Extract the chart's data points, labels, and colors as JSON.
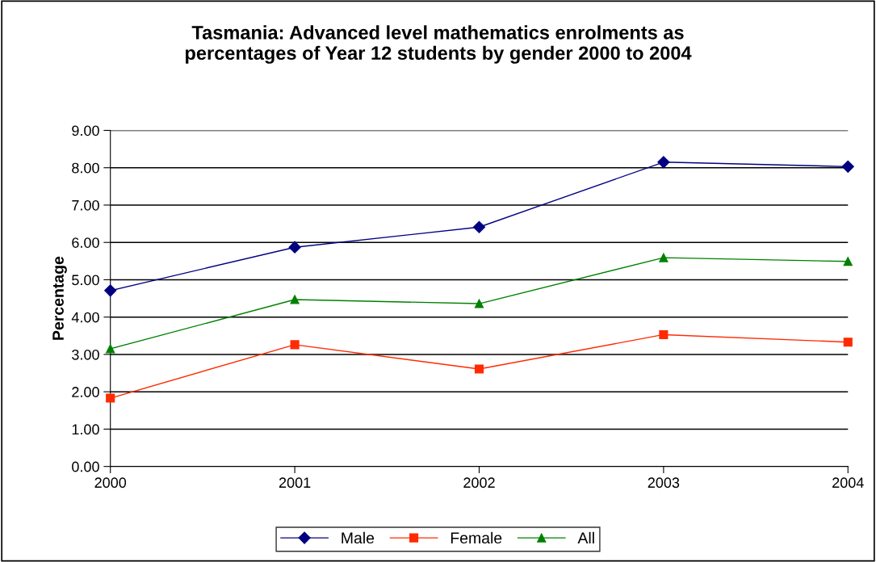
{
  "chart_data": {
    "type": "line",
    "title": "Tasmania: Advanced level mathematics enrolments as\npercentages of Year 12 students by gender 2000 to 2004",
    "ylabel": "Percentage",
    "x": [
      2000,
      2001,
      2002,
      2003,
      2004
    ],
    "xlim": [
      2000,
      2004
    ],
    "xticks": [
      2000,
      2001,
      2002,
      2003,
      2004
    ],
    "ylim": [
      0,
      9
    ],
    "yticks": [
      {
        "value": 0,
        "label": "0.00"
      },
      {
        "value": 1,
        "label": "1.00"
      },
      {
        "value": 2,
        "label": "2.00"
      },
      {
        "value": 3,
        "label": "3.00"
      },
      {
        "value": 4,
        "label": "4.00"
      },
      {
        "value": 5,
        "label": "5.00"
      },
      {
        "value": 6,
        "label": "6.00"
      },
      {
        "value": 7,
        "label": "7.00"
      },
      {
        "value": 8,
        "label": "8.00"
      },
      {
        "value": 9,
        "label": "9.00"
      }
    ],
    "grid": "y",
    "legend": "bottom",
    "line_style": "solid",
    "series": [
      {
        "name": "Male",
        "color": "#000080",
        "marker": "diamond",
        "values": [
          4.71,
          5.87,
          6.41,
          8.15,
          8.03
        ]
      },
      {
        "name": "Female",
        "color": "#ff2a00",
        "marker": "square",
        "values": [
          1.83,
          3.26,
          2.61,
          3.53,
          3.33
        ]
      },
      {
        "name": "All",
        "color": "#008000",
        "marker": "triangle",
        "values": [
          3.15,
          4.47,
          4.36,
          5.59,
          5.49
        ]
      }
    ]
  }
}
